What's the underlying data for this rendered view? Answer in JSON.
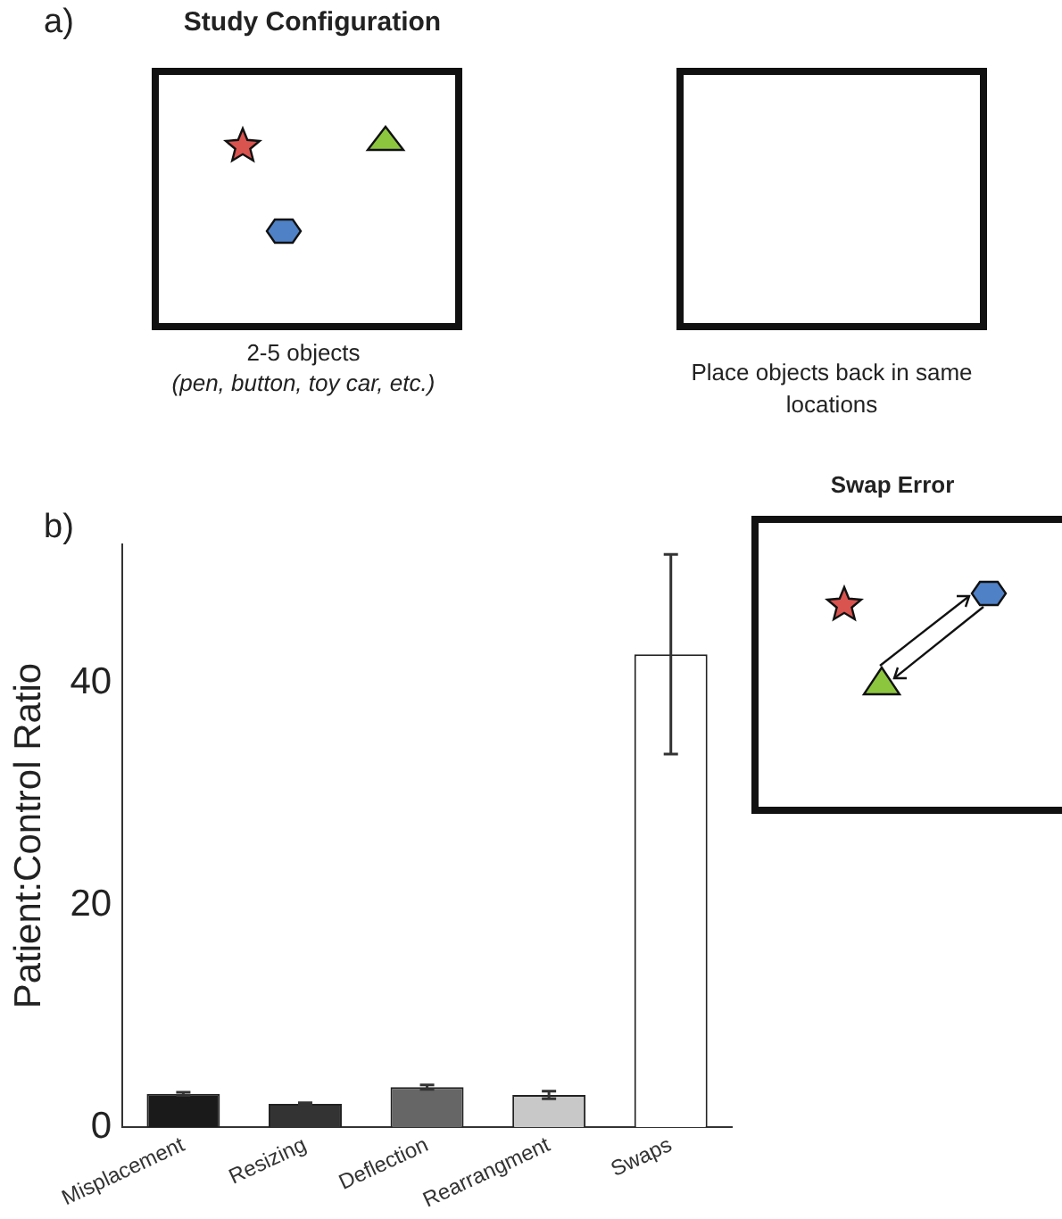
{
  "chart_data": {
    "type": "bar",
    "ylabel": "Patient:Control Ratio",
    "categories": [
      "Misplacement",
      "Resizing",
      "Deflection",
      "Rearrangment",
      "Swaps"
    ],
    "values": [
      3.0,
      2.1,
      3.6,
      2.9,
      42.6
    ],
    "errors": [
      0.15,
      0.1,
      0.2,
      0.35,
      9
    ],
    "colors": [
      "#1a1a1a",
      "#333333",
      "#666666",
      "#c8c8c8",
      "#ffffff"
    ],
    "ylim": [
      0,
      52.5
    ],
    "yticks": [
      0,
      20,
      40
    ],
    "grid": false,
    "legend": false,
    "annotations": [
      "a)",
      "Study Configuration",
      "2-5 objects",
      "(pen, button, toy car, etc.)",
      "Place objects back in same locations",
      "b)",
      "Swap Error"
    ]
  }
}
